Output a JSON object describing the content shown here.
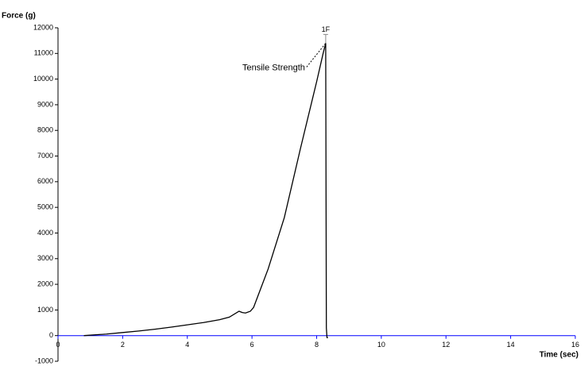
{
  "chart_data": {
    "type": "line",
    "y_label": "Force (g)",
    "x_label": "Time (sec)",
    "annotations": [
      "Tensile Strength",
      "1F"
    ],
    "xlim": [
      0,
      16
    ],
    "xticks": [
      0,
      2,
      4,
      6,
      8,
      10,
      12,
      14,
      16
    ],
    "ylim": [
      -1000,
      12000
    ],
    "yticks": [
      -1000,
      0,
      1000,
      2000,
      3000,
      4000,
      5000,
      6000,
      7000,
      8000,
      9000,
      10000,
      11000,
      12000
    ],
    "axis_color": "#0000ff",
    "label_color": "#1f3fd0",
    "series": [
      {
        "name": "Force",
        "color": "#000000",
        "x": [
          0.8,
          1.5,
          2,
          2.5,
          3,
          3.5,
          4,
          4.5,
          5,
          5.3,
          5.6,
          5.7,
          5.8,
          5.95,
          6.05,
          6.2,
          6.5,
          7,
          7.5,
          8,
          8.2,
          8.28,
          8.3,
          8.32,
          8.35
        ],
        "values": [
          0,
          60,
          120,
          180,
          250,
          330,
          420,
          510,
          620,
          720,
          950,
          900,
          880,
          950,
          1100,
          1600,
          2600,
          4600,
          7300,
          9900,
          11000,
          11400,
          300,
          -80,
          -80
        ]
      }
    ]
  }
}
